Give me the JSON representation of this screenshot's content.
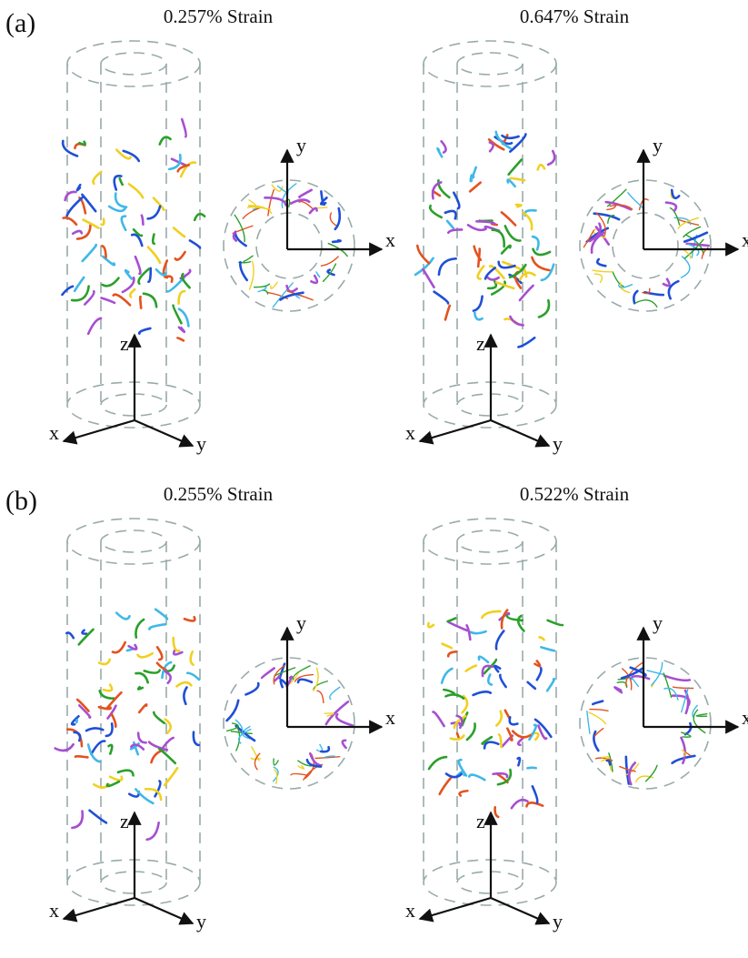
{
  "panels": [
    {
      "label": "(a)",
      "views": [
        {
          "title": "0.257% Strain",
          "side_axis_labels": [
            "z",
            "x",
            "y"
          ],
          "top_axis_labels": [
            "y",
            "x"
          ]
        },
        {
          "title": "0.647% Strain",
          "side_axis_labels": [
            "z",
            "x",
            "y"
          ],
          "top_axis_labels": [
            "y",
            "x"
          ]
        }
      ]
    },
    {
      "label": "(b)",
      "views": [
        {
          "title": "0.255% Strain",
          "side_axis_labels": [
            "z",
            "x",
            "y"
          ],
          "top_axis_labels": [
            "y",
            "x"
          ]
        },
        {
          "title": "0.522% Strain",
          "side_axis_labels": [
            "z",
            "x",
            "y"
          ],
          "top_axis_labels": [
            "y",
            "x"
          ]
        }
      ]
    }
  ]
}
